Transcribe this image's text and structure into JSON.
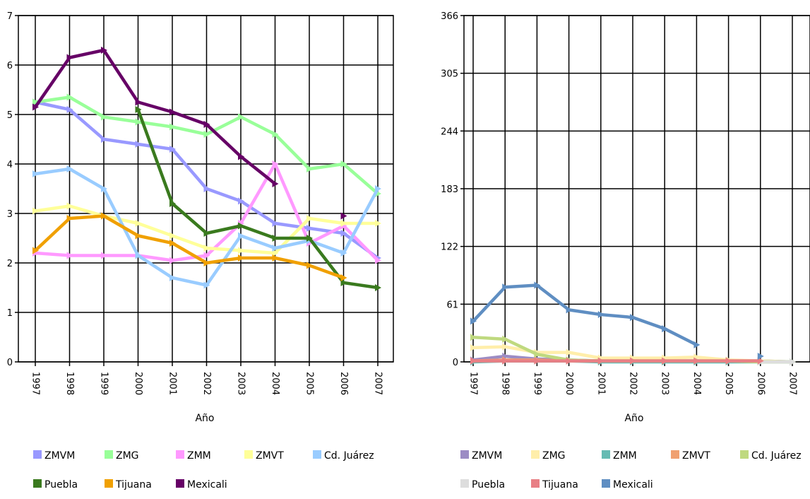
{
  "chart_data": [
    {
      "type": "line",
      "xlabel": "Año",
      "ylabel": "",
      "ylim": [
        0,
        7
      ],
      "yticks": [
        "0",
        "1",
        "2",
        "3",
        "4",
        "5",
        "6",
        "7"
      ],
      "x": [
        "1997",
        "1998",
        "1999",
        "2000",
        "2001",
        "2002",
        "2003",
        "2004",
        "2005",
        "2006",
        "2007"
      ],
      "grid": true,
      "legend_position": "bottom",
      "series": [
        {
          "name": "ZMVM",
          "color": "#9999ff",
          "values": [
            5.25,
            5.1,
            4.5,
            4.4,
            4.3,
            3.5,
            3.25,
            2.8,
            2.7,
            2.6,
            2.1
          ]
        },
        {
          "name": "ZMG",
          "color": "#99ff99",
          "values": [
            5.25,
            5.35,
            4.95,
            4.85,
            4.75,
            4.6,
            4.95,
            4.6,
            3.9,
            4.0,
            3.4
          ]
        },
        {
          "name": "ZMM",
          "color": "#ff99ff",
          "values": [
            2.2,
            2.15,
            2.15,
            2.15,
            2.05,
            2.15,
            2.8,
            4.0,
            2.4,
            2.75,
            2.05
          ]
        },
        {
          "name": "ZMVT",
          "color": "#ffff99",
          "values": [
            3.05,
            3.15,
            2.95,
            2.8,
            2.55,
            2.3,
            2.25,
            2.2,
            2.9,
            2.8,
            2.8
          ]
        },
        {
          "name": "Cd. Juárez",
          "color": "#99ccff",
          "values": [
            3.8,
            3.9,
            3.5,
            2.15,
            1.7,
            1.55,
            2.55,
            2.3,
            2.45,
            2.2,
            3.5
          ]
        },
        {
          "name": "Puebla",
          "color": "#3a7a1e",
          "values": [
            null,
            null,
            null,
            5.1,
            3.2,
            2.6,
            2.75,
            2.5,
            2.5,
            1.6,
            1.5
          ]
        },
        {
          "name": "Tijuana",
          "color": "#f0a000",
          "values": [
            2.25,
            2.9,
            2.95,
            2.55,
            2.4,
            2.0,
            2.1,
            2.1,
            1.95,
            1.7,
            null
          ]
        },
        {
          "name": "Mexicali",
          "color": "#660066",
          "values": [
            5.15,
            6.15,
            6.3,
            5.25,
            5.05,
            4.8,
            4.15,
            3.6,
            null,
            2.95,
            null
          ]
        }
      ]
    },
    {
      "type": "line",
      "xlabel": "Año",
      "ylabel": "",
      "ylim": [
        0,
        366
      ],
      "yticks": [
        "0",
        "61",
        "122",
        "183",
        "244",
        "305",
        "366"
      ],
      "x": [
        "1997",
        "1998",
        "1999",
        "2000",
        "2001",
        "2002",
        "2003",
        "2004",
        "2005",
        "2006",
        "2007"
      ],
      "grid": true,
      "legend_position": "bottom",
      "series": [
        {
          "name": "ZMVM",
          "color": "#9c8cc4",
          "values": [
            2,
            6,
            3,
            2,
            1,
            1,
            1,
            1,
            1,
            1,
            0
          ]
        },
        {
          "name": "ZMG",
          "color": "#ffeeaa",
          "values": [
            15,
            16,
            10,
            10,
            4,
            4,
            4,
            5,
            2,
            1,
            0
          ]
        },
        {
          "name": "ZMM",
          "color": "#66bbb3",
          "values": [
            0,
            1,
            1,
            1,
            0,
            0,
            0,
            0,
            0,
            0,
            0
          ]
        },
        {
          "name": "ZMVT",
          "color": "#f0a070",
          "values": [
            1,
            2,
            2,
            1,
            1,
            1,
            1,
            1,
            1,
            1,
            null
          ]
        },
        {
          "name": "Cd. Juárez",
          "color": "#bfd97f",
          "values": [
            26,
            24,
            8,
            2,
            1,
            1,
            1,
            1,
            1,
            0,
            0
          ]
        },
        {
          "name": "Puebla",
          "color": "#dddddd",
          "values": [
            null,
            null,
            null,
            null,
            null,
            null,
            null,
            null,
            null,
            0,
            0
          ]
        },
        {
          "name": "Tijuana",
          "color": "#e87f85",
          "values": [
            1,
            1,
            1,
            1,
            1,
            1,
            1,
            1,
            1,
            1,
            null
          ]
        },
        {
          "name": "Mexicali",
          "color": "#5f8ec2",
          "values": [
            43,
            79,
            81,
            55,
            50,
            47,
            35,
            18,
            null,
            6,
            null
          ]
        }
      ]
    }
  ]
}
